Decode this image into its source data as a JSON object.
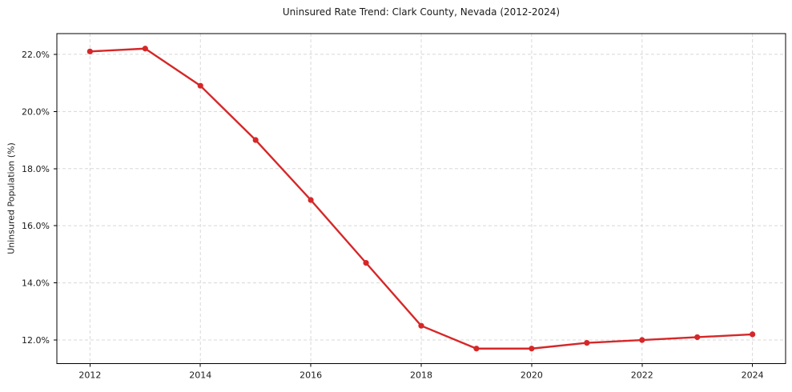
{
  "chart_data": {
    "type": "line",
    "title": "Uninsured Rate Trend: Clark County, Nevada (2012-2024)",
    "xlabel": "",
    "ylabel": "Uninsured Population (%)",
    "x": [
      2012,
      2013,
      2014,
      2015,
      2016,
      2017,
      2018,
      2019,
      2020,
      2021,
      2022,
      2023,
      2024
    ],
    "values": [
      22.1,
      22.2,
      20.9,
      19.0,
      16.9,
      14.7,
      12.5,
      11.7,
      11.7,
      11.9,
      12.0,
      12.1,
      12.2
    ],
    "xlim": [
      2011.4,
      2024.6
    ],
    "ylim": [
      11.175,
      22.725
    ],
    "xticks": [
      2012,
      2014,
      2016,
      2018,
      2020,
      2022,
      2024
    ],
    "yticks": [
      12,
      14,
      16,
      18,
      20,
      22
    ],
    "ytick_decimals": 1,
    "ytick_suffix": "%",
    "grid": true,
    "grid_style": "dashed",
    "legend": false,
    "line_color": "#d62728",
    "marker": "circle",
    "grid_color": "#d8d8d8",
    "axis_color": "#000000",
    "tick_label_color": "#1a1a1a",
    "background_color": "#ffffff"
  }
}
